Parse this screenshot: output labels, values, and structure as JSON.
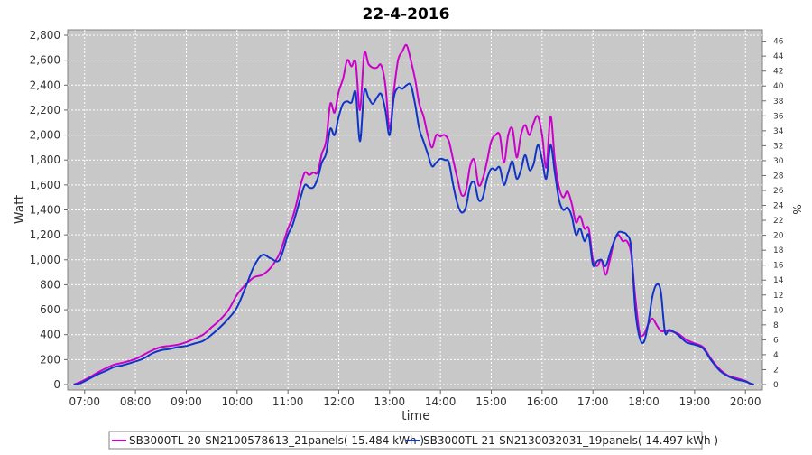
{
  "chart_data": {
    "type": "line",
    "title": "22-4-2016",
    "xlabel": "time",
    "ylabel": "Watt",
    "y2label": "%",
    "xlim": [
      "06:40",
      "20:20"
    ],
    "ylim": [
      0,
      2800
    ],
    "y2lim": [
      0,
      46.8
    ],
    "xticks": [
      "07:00",
      "08:00",
      "09:00",
      "10:00",
      "11:00",
      "12:00",
      "13:00",
      "14:00",
      "15:00",
      "16:00",
      "17:00",
      "18:00",
      "19:00",
      "20:00"
    ],
    "yticks": [
      "0",
      "200",
      "400",
      "600",
      "800",
      "1,000",
      "1,200",
      "1,400",
      "1,600",
      "1,800",
      "2,000",
      "2,200",
      "2,400",
      "2,600",
      "2,800"
    ],
    "y2ticks": [
      "0",
      "2",
      "4",
      "6",
      "8",
      "10",
      "12",
      "14",
      "16",
      "18",
      "20",
      "22",
      "24",
      "26",
      "28",
      "30",
      "32",
      "34",
      "36",
      "38",
      "40",
      "42",
      "44",
      "46"
    ],
    "grid": true,
    "legend_position": "bottom",
    "series": [
      {
        "name": "SB3000TL-20-SN2100578613_21panels( 15.484 kWh )",
        "color": "#cc00cc",
        "points": [
          [
            "06:47",
            0
          ],
          [
            "06:55",
            20
          ],
          [
            "07:05",
            55
          ],
          [
            "07:15",
            95
          ],
          [
            "07:25",
            130
          ],
          [
            "07:35",
            160
          ],
          [
            "07:45",
            175
          ],
          [
            "08:00",
            205
          ],
          [
            "08:10",
            240
          ],
          [
            "08:20",
            275
          ],
          [
            "08:30",
            300
          ],
          [
            "08:40",
            310
          ],
          [
            "08:50",
            320
          ],
          [
            "09:00",
            340
          ],
          [
            "09:10",
            370
          ],
          [
            "09:20",
            400
          ],
          [
            "09:30",
            460
          ],
          [
            "09:40",
            520
          ],
          [
            "09:50",
            600
          ],
          [
            "10:00",
            720
          ],
          [
            "10:10",
            800
          ],
          [
            "10:20",
            860
          ],
          [
            "10:30",
            880
          ],
          [
            "10:40",
            940
          ],
          [
            "10:50",
            1050
          ],
          [
            "11:00",
            1250
          ],
          [
            "11:05",
            1330
          ],
          [
            "11:10",
            1450
          ],
          [
            "11:15",
            1600
          ],
          [
            "11:20",
            1700
          ],
          [
            "11:25",
            1680
          ],
          [
            "11:30",
            1700
          ],
          [
            "11:35",
            1700
          ],
          [
            "11:40",
            1850
          ],
          [
            "11:45",
            1950
          ],
          [
            "11:50",
            2250
          ],
          [
            "11:55",
            2180
          ],
          [
            "12:00",
            2350
          ],
          [
            "12:05",
            2450
          ],
          [
            "12:10",
            2600
          ],
          [
            "12:15",
            2550
          ],
          [
            "12:20",
            2580
          ],
          [
            "12:25",
            2200
          ],
          [
            "12:30",
            2650
          ],
          [
            "12:35",
            2570
          ],
          [
            "12:40",
            2540
          ],
          [
            "12:45",
            2540
          ],
          [
            "12:50",
            2560
          ],
          [
            "12:55",
            2400
          ],
          [
            "13:00",
            2050
          ],
          [
            "13:05",
            2350
          ],
          [
            "13:10",
            2600
          ],
          [
            "13:15",
            2670
          ],
          [
            "13:20",
            2720
          ],
          [
            "13:25",
            2600
          ],
          [
            "13:30",
            2450
          ],
          [
            "13:35",
            2250
          ],
          [
            "13:40",
            2150
          ],
          [
            "13:45",
            2000
          ],
          [
            "13:50",
            1900
          ],
          [
            "13:55",
            2000
          ],
          [
            "14:00",
            1990
          ],
          [
            "14:05",
            2000
          ],
          [
            "14:10",
            1950
          ],
          [
            "14:15",
            1800
          ],
          [
            "14:20",
            1650
          ],
          [
            "14:25",
            1520
          ],
          [
            "14:30",
            1550
          ],
          [
            "14:35",
            1750
          ],
          [
            "14:40",
            1800
          ],
          [
            "14:45",
            1600
          ],
          [
            "14:50",
            1650
          ],
          [
            "14:55",
            1790
          ],
          [
            "15:00",
            1950
          ],
          [
            "15:05",
            2000
          ],
          [
            "15:10",
            2000
          ],
          [
            "15:15",
            1780
          ],
          [
            "15:20",
            2000
          ],
          [
            "15:25",
            2050
          ],
          [
            "15:30",
            1820
          ],
          [
            "15:35",
            2000
          ],
          [
            "15:40",
            2080
          ],
          [
            "15:45",
            2000
          ],
          [
            "15:50",
            2100
          ],
          [
            "15:55",
            2150
          ],
          [
            "16:00",
            2000
          ],
          [
            "16:05",
            1740
          ],
          [
            "16:10",
            2150
          ],
          [
            "16:15",
            1800
          ],
          [
            "16:20",
            1580
          ],
          [
            "16:25",
            1500
          ],
          [
            "16:30",
            1550
          ],
          [
            "16:35",
            1450
          ],
          [
            "16:40",
            1300
          ],
          [
            "16:45",
            1350
          ],
          [
            "16:50",
            1250
          ],
          [
            "16:55",
            1250
          ],
          [
            "17:00",
            1000
          ],
          [
            "17:05",
            950
          ],
          [
            "17:10",
            1000
          ],
          [
            "17:15",
            880
          ],
          [
            "17:20",
            1000
          ],
          [
            "17:25",
            1150
          ],
          [
            "17:30",
            1200
          ],
          [
            "17:35",
            1150
          ],
          [
            "17:40",
            1150
          ],
          [
            "17:45",
            1050
          ],
          [
            "17:50",
            700
          ],
          [
            "17:55",
            420
          ],
          [
            "18:00",
            400
          ],
          [
            "18:05",
            480
          ],
          [
            "18:10",
            530
          ],
          [
            "18:15",
            480
          ],
          [
            "18:20",
            430
          ],
          [
            "18:25",
            430
          ],
          [
            "18:30",
            430
          ],
          [
            "18:40",
            410
          ],
          [
            "18:50",
            360
          ],
          [
            "19:00",
            330
          ],
          [
            "19:10",
            300
          ],
          [
            "19:20",
            200
          ],
          [
            "19:30",
            120
          ],
          [
            "19:40",
            70
          ],
          [
            "19:50",
            50
          ],
          [
            "20:00",
            30
          ],
          [
            "20:05",
            10
          ],
          [
            "20:10",
            0
          ]
        ]
      },
      {
        "name": "SB3000TL-21-SN2130032031_19panels( 14.497 kWh )",
        "color": "#1034c8",
        "points": [
          [
            "06:47",
            0
          ],
          [
            "06:55",
            10
          ],
          [
            "07:05",
            45
          ],
          [
            "07:15",
            80
          ],
          [
            "07:25",
            110
          ],
          [
            "07:35",
            140
          ],
          [
            "07:45",
            155
          ],
          [
            "08:00",
            185
          ],
          [
            "08:10",
            210
          ],
          [
            "08:20",
            250
          ],
          [
            "08:30",
            275
          ],
          [
            "08:40",
            285
          ],
          [
            "08:50",
            300
          ],
          [
            "09:00",
            310
          ],
          [
            "09:10",
            330
          ],
          [
            "09:20",
            350
          ],
          [
            "09:30",
            400
          ],
          [
            "09:40",
            460
          ],
          [
            "09:50",
            530
          ],
          [
            "10:00",
            620
          ],
          [
            "10:10",
            780
          ],
          [
            "10:20",
            950
          ],
          [
            "10:30",
            1040
          ],
          [
            "10:40",
            1010
          ],
          [
            "10:50",
            1000
          ],
          [
            "11:00",
            1200
          ],
          [
            "11:05",
            1270
          ],
          [
            "11:10",
            1380
          ],
          [
            "11:15",
            1500
          ],
          [
            "11:20",
            1600
          ],
          [
            "11:25",
            1580
          ],
          [
            "11:30",
            1580
          ],
          [
            "11:35",
            1650
          ],
          [
            "11:40",
            1780
          ],
          [
            "11:45",
            1850
          ],
          [
            "11:50",
            2050
          ],
          [
            "11:55",
            2000
          ],
          [
            "12:00",
            2150
          ],
          [
            "12:05",
            2250
          ],
          [
            "12:10",
            2270
          ],
          [
            "12:15",
            2260
          ],
          [
            "12:20",
            2340
          ],
          [
            "12:25",
            1950
          ],
          [
            "12:30",
            2350
          ],
          [
            "12:35",
            2300
          ],
          [
            "12:40",
            2250
          ],
          [
            "12:45",
            2300
          ],
          [
            "12:50",
            2330
          ],
          [
            "12:55",
            2200
          ],
          [
            "13:00",
            2000
          ],
          [
            "13:05",
            2300
          ],
          [
            "13:10",
            2380
          ],
          [
            "13:15",
            2370
          ],
          [
            "13:20",
            2400
          ],
          [
            "13:25",
            2400
          ],
          [
            "13:30",
            2250
          ],
          [
            "13:35",
            2050
          ],
          [
            "13:40",
            1950
          ],
          [
            "13:45",
            1850
          ],
          [
            "13:50",
            1750
          ],
          [
            "13:55",
            1780
          ],
          [
            "14:00",
            1810
          ],
          [
            "14:05",
            1800
          ],
          [
            "14:10",
            1780
          ],
          [
            "14:15",
            1600
          ],
          [
            "14:20",
            1450
          ],
          [
            "14:25",
            1380
          ],
          [
            "14:30",
            1420
          ],
          [
            "14:35",
            1590
          ],
          [
            "14:40",
            1620
          ],
          [
            "14:45",
            1480
          ],
          [
            "14:50",
            1500
          ],
          [
            "14:55",
            1650
          ],
          [
            "15:00",
            1730
          ],
          [
            "15:05",
            1720
          ],
          [
            "15:10",
            1740
          ],
          [
            "15:15",
            1600
          ],
          [
            "15:20",
            1700
          ],
          [
            "15:25",
            1790
          ],
          [
            "15:30",
            1650
          ],
          [
            "15:35",
            1720
          ],
          [
            "15:40",
            1840
          ],
          [
            "15:45",
            1720
          ],
          [
            "15:50",
            1770
          ],
          [
            "15:55",
            1920
          ],
          [
            "16:00",
            1800
          ],
          [
            "16:05",
            1650
          ],
          [
            "16:10",
            1920
          ],
          [
            "16:15",
            1700
          ],
          [
            "16:20",
            1480
          ],
          [
            "16:25",
            1400
          ],
          [
            "16:30",
            1420
          ],
          [
            "16:35",
            1350
          ],
          [
            "16:40",
            1200
          ],
          [
            "16:45",
            1250
          ],
          [
            "16:50",
            1150
          ],
          [
            "16:55",
            1200
          ],
          [
            "17:00",
            960
          ],
          [
            "17:05",
            990
          ],
          [
            "17:10",
            1000
          ],
          [
            "17:15",
            950
          ],
          [
            "17:20",
            1050
          ],
          [
            "17:25",
            1150
          ],
          [
            "17:30",
            1220
          ],
          [
            "17:35",
            1220
          ],
          [
            "17:40",
            1200
          ],
          [
            "17:45",
            1100
          ],
          [
            "17:50",
            600
          ],
          [
            "17:55",
            380
          ],
          [
            "18:00",
            340
          ],
          [
            "18:05",
            480
          ],
          [
            "18:10",
            700
          ],
          [
            "18:15",
            800
          ],
          [
            "18:20",
            750
          ],
          [
            "18:25",
            420
          ],
          [
            "18:30",
            440
          ],
          [
            "18:40",
            400
          ],
          [
            "18:50",
            340
          ],
          [
            "19:00",
            320
          ],
          [
            "19:10",
            290
          ],
          [
            "19:20",
            190
          ],
          [
            "19:30",
            110
          ],
          [
            "19:40",
            65
          ],
          [
            "19:50",
            40
          ],
          [
            "20:00",
            25
          ],
          [
            "20:05",
            10
          ],
          [
            "20:10",
            0
          ]
        ]
      }
    ]
  }
}
